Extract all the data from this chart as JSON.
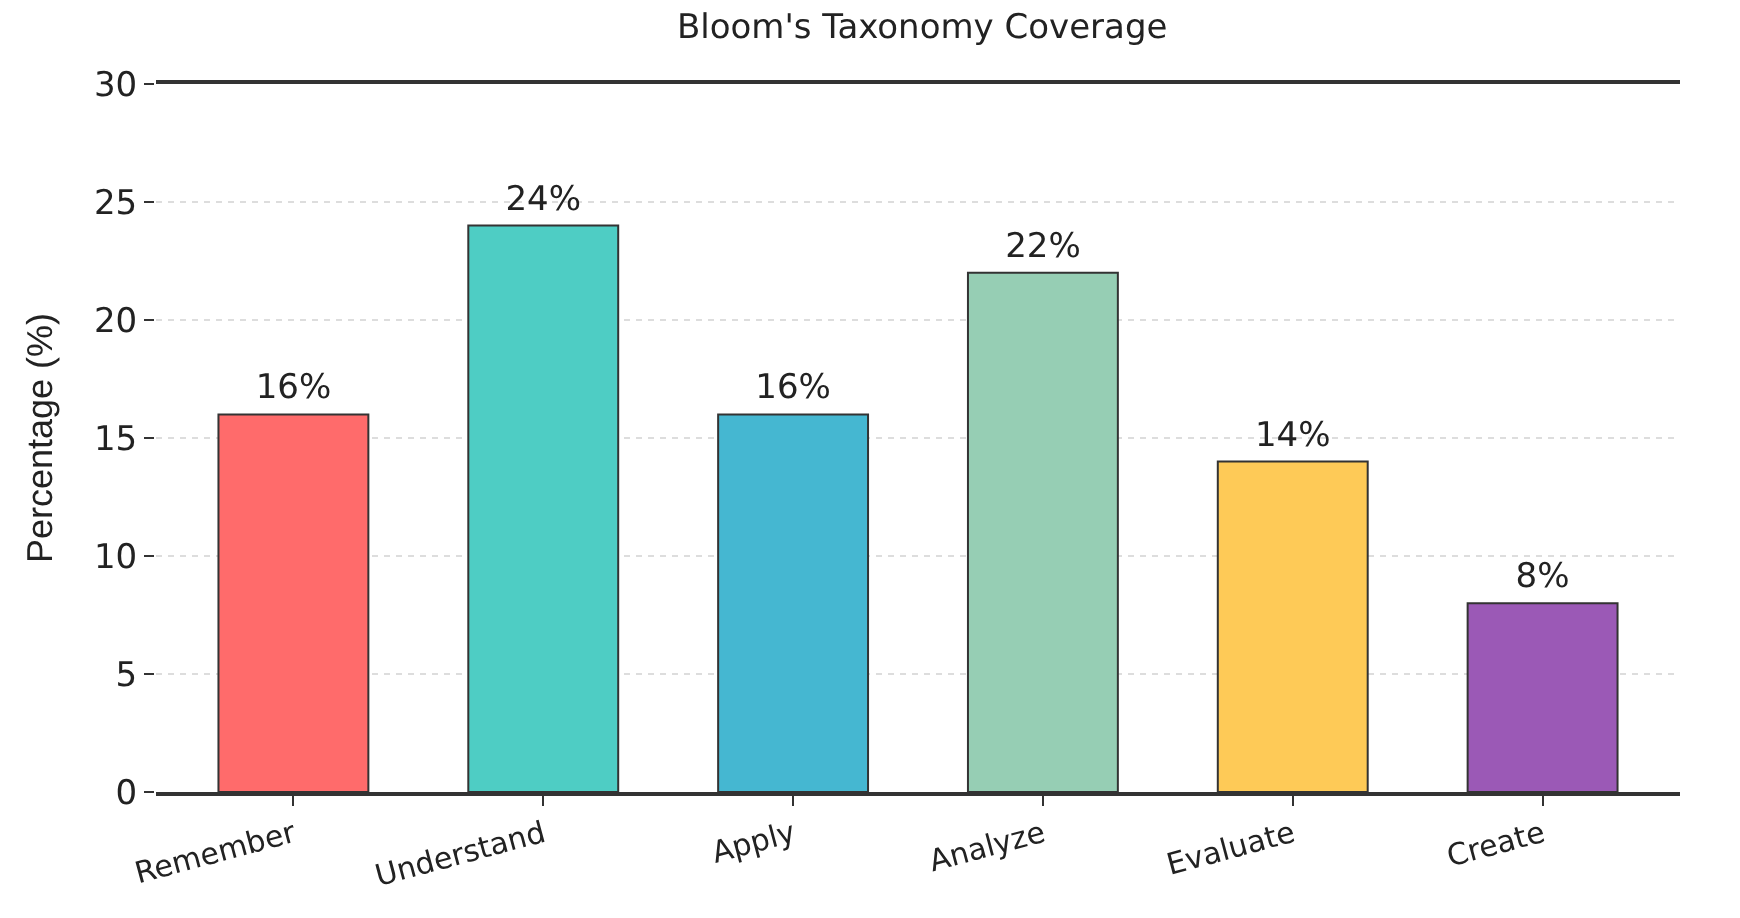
{
  "chart_data": {
    "type": "bar",
    "title": "Bloom's Taxonomy Coverage",
    "ylabel": "Percentage (%)",
    "categories": [
      "Remember",
      "Understand",
      "Apply",
      "Analyze",
      "Evaluate",
      "Create"
    ],
    "values": [
      16,
      24,
      16,
      22,
      14,
      8
    ],
    "colors": [
      "#ff6b6b",
      "#4ecdc4",
      "#45b7d1",
      "#96ceb4",
      "#feca57",
      "#9b59b6"
    ],
    "value_labels": [
      "16%",
      "24%",
      "16%",
      "22%",
      "14%",
      "8%"
    ],
    "ylim": [
      0,
      30
    ],
    "yticks": [
      0,
      5,
      10,
      15,
      20,
      25,
      30
    ],
    "grid": "y"
  }
}
